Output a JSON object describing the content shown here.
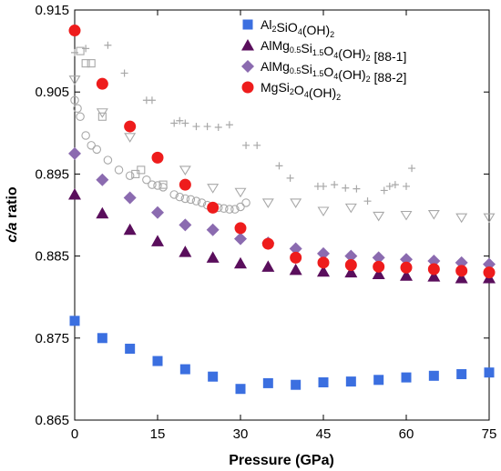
{
  "chart_data": {
    "type": "scatter",
    "xlabel": "Pressure (GPa)",
    "ylabel": {
      "italic": "c/a",
      "rest": " ratio"
    },
    "xlim": [
      0,
      75
    ],
    "ylim": [
      0.865,
      0.915
    ],
    "xticks": [
      "0",
      "15",
      "30",
      "45",
      "60",
      "75"
    ],
    "yticks": [
      "0.865",
      "0.875",
      "0.885",
      "0.895",
      "0.905",
      "0.915"
    ],
    "grid": false,
    "legend_position": "top-right",
    "series": [
      {
        "name": "Al2SiO4(OH)2",
        "label_parts": [
          [
            "Al",
            ""
          ],
          [
            "2",
            "sub"
          ],
          [
            "SiO",
            ""
          ],
          [
            "4",
            "sub"
          ],
          [
            "(OH)",
            ""
          ],
          [
            "2",
            "sub"
          ]
        ],
        "marker": "square",
        "color": "#3b6fe0",
        "points": [
          [
            0,
            0.8771
          ],
          [
            5,
            0.875
          ],
          [
            10,
            0.8737
          ],
          [
            15,
            0.8722
          ],
          [
            20,
            0.8712
          ],
          [
            25,
            0.8703
          ],
          [
            30,
            0.8688
          ],
          [
            35,
            0.8695
          ],
          [
            40,
            0.8693
          ],
          [
            45,
            0.8696
          ],
          [
            50,
            0.8697
          ],
          [
            55,
            0.8699
          ],
          [
            60,
            0.8702
          ],
          [
            65,
            0.8704
          ],
          [
            70,
            0.8706
          ],
          [
            75,
            0.8708
          ]
        ]
      },
      {
        "name": "AlMg0.5Si1.5O4(OH)2 [88-1]",
        "label_parts": [
          [
            "AlMg",
            ""
          ],
          [
            "0.5",
            "sub"
          ],
          [
            "Si",
            ""
          ],
          [
            "1.5",
            "sub"
          ],
          [
            "O",
            ""
          ],
          [
            "4",
            "sub"
          ],
          [
            "(OH)",
            ""
          ],
          [
            "2",
            "sub"
          ],
          [
            " [88-1]",
            ""
          ]
        ],
        "marker": "triangle",
        "color": "#5a0e5c",
        "points": [
          [
            0,
            0.8925
          ],
          [
            5,
            0.8902
          ],
          [
            10,
            0.8882
          ],
          [
            15,
            0.8868
          ],
          [
            20,
            0.8855
          ],
          [
            25,
            0.8848
          ],
          [
            30,
            0.8841
          ],
          [
            35,
            0.8837
          ],
          [
            40,
            0.8833
          ],
          [
            45,
            0.8831
          ],
          [
            50,
            0.883
          ],
          [
            55,
            0.8828
          ],
          [
            60,
            0.8826
          ],
          [
            65,
            0.8825
          ],
          [
            70,
            0.8823
          ],
          [
            75,
            0.8823
          ]
        ]
      },
      {
        "name": "AlMg0.5Si1.5O4(OH)2 [88-2]",
        "label_parts": [
          [
            "AlMg",
            ""
          ],
          [
            "0.5",
            "sub"
          ],
          [
            "Si",
            ""
          ],
          [
            "1.5",
            "sub"
          ],
          [
            "O",
            ""
          ],
          [
            "4",
            "sub"
          ],
          [
            "(OH)",
            ""
          ],
          [
            "2",
            "sub"
          ],
          [
            " [88-2]",
            ""
          ]
        ],
        "marker": "diamond",
        "color": "#8b6bb0",
        "points": [
          [
            0,
            0.8975
          ],
          [
            5,
            0.8943
          ],
          [
            10,
            0.8921
          ],
          [
            15,
            0.8903
          ],
          [
            20,
            0.8888
          ],
          [
            25,
            0.8882
          ],
          [
            30,
            0.8871
          ],
          [
            35,
            0.8866
          ],
          [
            40,
            0.8859
          ],
          [
            45,
            0.8853
          ],
          [
            50,
            0.885
          ],
          [
            55,
            0.8848
          ],
          [
            60,
            0.8846
          ],
          [
            65,
            0.8844
          ],
          [
            70,
            0.8842
          ],
          [
            75,
            0.884
          ]
        ]
      },
      {
        "name": "MgSi2O4(OH)2",
        "label_parts": [
          [
            "MgSi",
            ""
          ],
          [
            "2",
            "sub"
          ],
          [
            "O",
            ""
          ],
          [
            "4",
            "sub"
          ],
          [
            "(OH)",
            ""
          ],
          [
            "2",
            "sub"
          ]
        ],
        "marker": "circle",
        "color": "#ee1c1c",
        "points": [
          [
            0,
            0.9125
          ],
          [
            5,
            0.906
          ],
          [
            10,
            0.9008
          ],
          [
            15,
            0.897
          ],
          [
            20,
            0.8937
          ],
          [
            25,
            0.8909
          ],
          [
            30,
            0.8884
          ],
          [
            35,
            0.8865
          ],
          [
            40,
            0.8848
          ],
          [
            45,
            0.8842
          ],
          [
            50,
            0.8839
          ],
          [
            55,
            0.8837
          ],
          [
            60,
            0.8836
          ],
          [
            65,
            0.8834
          ],
          [
            70,
            0.8832
          ],
          [
            75,
            0.883
          ]
        ]
      }
    ],
    "unlabeled_series": [
      {
        "marker": "plus",
        "color": "#a8a8a8",
        "points": [
          [
            0,
            0.9098
          ],
          [
            2,
            0.9103
          ],
          [
            6,
            0.9107
          ],
          [
            9,
            0.9073
          ],
          [
            13,
            0.904
          ],
          [
            14,
            0.904
          ],
          [
            18,
            0.9012
          ],
          [
            19,
            0.9015
          ],
          [
            20,
            0.9012
          ],
          [
            22,
            0.9008
          ],
          [
            24,
            0.9008
          ],
          [
            26,
            0.9007
          ],
          [
            28,
            0.901
          ],
          [
            31,
            0.8985
          ],
          [
            33,
            0.8985
          ],
          [
            37,
            0.896
          ],
          [
            39,
            0.8945
          ],
          [
            44,
            0.8935
          ],
          [
            45,
            0.8935
          ],
          [
            47,
            0.8937
          ],
          [
            49,
            0.8933
          ],
          [
            51,
            0.8932
          ],
          [
            53,
            0.8917
          ],
          [
            56,
            0.893
          ],
          [
            57,
            0.8935
          ],
          [
            58,
            0.8937
          ],
          [
            60,
            0.8935
          ],
          [
            61,
            0.8957
          ]
        ]
      },
      {
        "marker": "open-square",
        "color": "#a8a8a8",
        "points": [
          [
            1,
            0.91
          ],
          [
            2,
            0.9085
          ],
          [
            3,
            0.9085
          ],
          [
            5,
            0.902
          ],
          [
            11,
            0.895
          ],
          [
            12,
            0.8955
          ],
          [
            16,
            0.8937
          ]
        ]
      },
      {
        "marker": "open-triangle-down",
        "color": "#a8a8a8",
        "points": [
          [
            0,
            0.9065
          ],
          [
            5,
            0.9025
          ],
          [
            10,
            0.8995
          ],
          [
            20,
            0.8955
          ],
          [
            25,
            0.8933
          ],
          [
            30,
            0.8928
          ],
          [
            35,
            0.8915
          ],
          [
            40,
            0.8915
          ],
          [
            45,
            0.8905
          ],
          [
            50,
            0.8909
          ],
          [
            55,
            0.8899
          ],
          [
            60,
            0.89
          ],
          [
            65,
            0.8901
          ],
          [
            70,
            0.8897
          ],
          [
            75,
            0.8897
          ]
        ]
      },
      {
        "marker": "open-circle",
        "color": "#a8a8a8",
        "points": [
          [
            0,
            0.904
          ],
          [
            0.5,
            0.903
          ],
          [
            1,
            0.902
          ],
          [
            2,
            0.8997
          ],
          [
            3,
            0.8985
          ],
          [
            4,
            0.898
          ],
          [
            6,
            0.8967
          ],
          [
            8,
            0.8955
          ],
          [
            10,
            0.8948
          ],
          [
            13,
            0.8943
          ],
          [
            14,
            0.8937
          ],
          [
            15,
            0.8936
          ],
          [
            16,
            0.8934
          ],
          [
            18,
            0.8925
          ],
          [
            19,
            0.8922
          ],
          [
            20,
            0.892
          ],
          [
            21,
            0.8919
          ],
          [
            22,
            0.8917
          ],
          [
            23,
            0.8915
          ],
          [
            24,
            0.8912
          ],
          [
            25,
            0.8911
          ],
          [
            26,
            0.8909
          ],
          [
            27,
            0.8908
          ],
          [
            28,
            0.8907
          ],
          [
            29,
            0.8907
          ],
          [
            30,
            0.891
          ],
          [
            31,
            0.8915
          ]
        ]
      }
    ]
  }
}
